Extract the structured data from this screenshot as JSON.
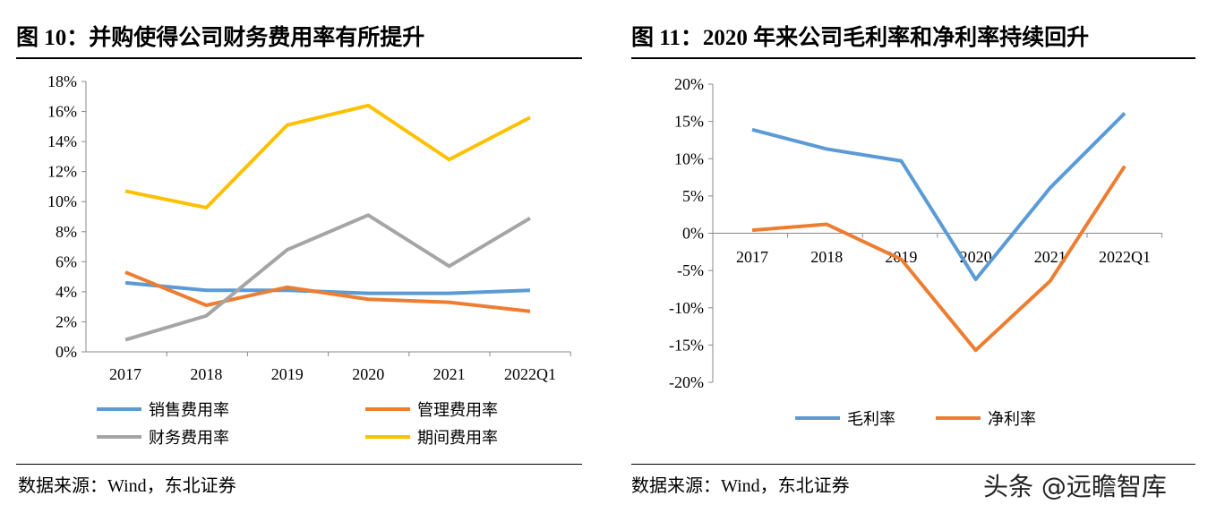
{
  "charts": [
    {
      "title": "图 10：并购使得公司财务费用率有所提升",
      "source": "数据来源：Wind，东北证券"
    },
    {
      "title": "图 11：2020 年来公司毛利率和净利率持续回升",
      "source": "数据来源：Wind，东北证券"
    }
  ],
  "watermark": "头条 @远瞻智库",
  "chart_data": [
    {
      "type": "line",
      "categories": [
        "2017",
        "2018",
        "2019",
        "2020",
        "2021",
        "2022Q1"
      ],
      "ylim": [
        0,
        18
      ],
      "yticks": [
        0,
        2,
        4,
        6,
        8,
        10,
        12,
        14,
        16,
        18
      ],
      "yunit": "%",
      "grid": false,
      "legend": "bottom",
      "series": [
        {
          "name": "销售费用率",
          "color": "#5B9BD5",
          "values": [
            4.6,
            4.1,
            4.1,
            3.9,
            3.9,
            4.1
          ]
        },
        {
          "name": "管理费用率",
          "color": "#ED7D31",
          "values": [
            5.3,
            3.1,
            4.3,
            3.5,
            3.3,
            2.7
          ]
        },
        {
          "name": "财务费用率",
          "color": "#A5A5A5",
          "values": [
            0.8,
            2.4,
            6.8,
            9.1,
            5.7,
            8.9
          ]
        },
        {
          "name": "期间费用率",
          "color": "#FFC000",
          "values": [
            10.7,
            9.6,
            15.1,
            16.4,
            12.8,
            15.6
          ]
        }
      ]
    },
    {
      "type": "line",
      "categories": [
        "2017",
        "2018",
        "2019",
        "2020",
        "2021",
        "2022Q1"
      ],
      "ylim": [
        -20,
        20
      ],
      "yticks": [
        -20,
        -15,
        -10,
        -5,
        0,
        5,
        10,
        15,
        20
      ],
      "yunit": "%",
      "grid": false,
      "legend": "bottom",
      "series": [
        {
          "name": "毛利率",
          "color": "#5B9BD5",
          "values": [
            13.9,
            11.3,
            9.7,
            -6.2,
            6.1,
            16.1
          ]
        },
        {
          "name": "净利率",
          "color": "#ED7D31",
          "values": [
            0.4,
            1.2,
            -3.5,
            -15.7,
            -6.4,
            9.0
          ]
        }
      ]
    }
  ]
}
